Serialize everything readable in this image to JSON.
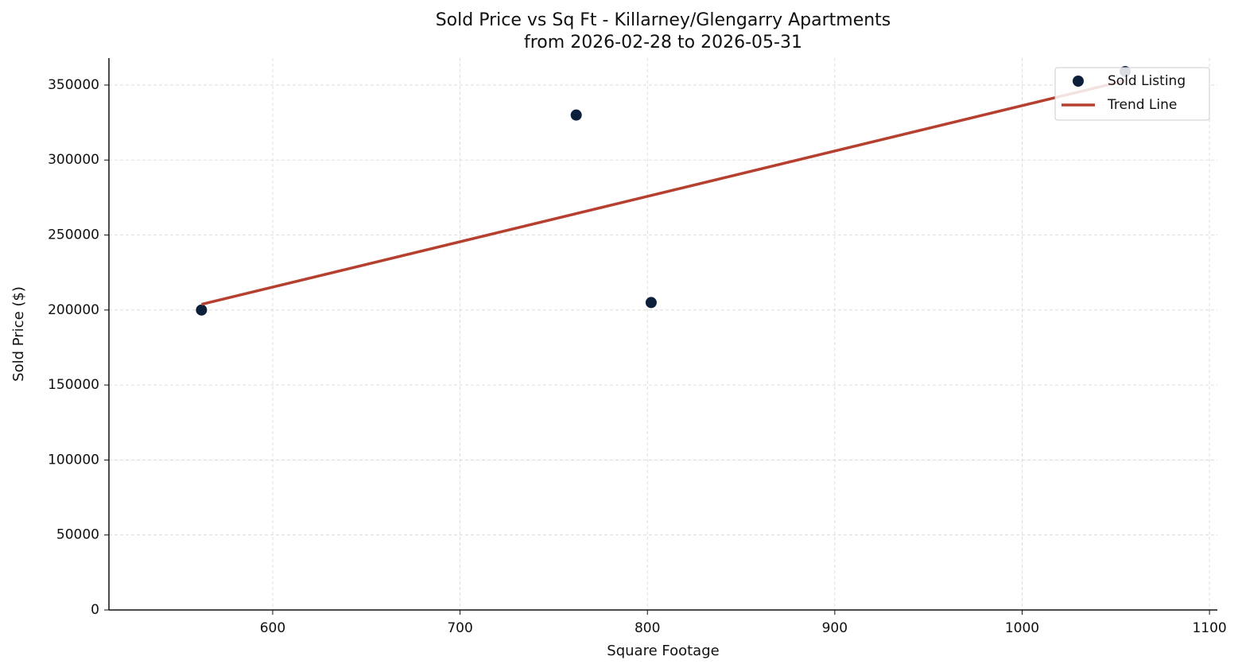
{
  "chart_data": {
    "type": "scatter",
    "title": "Sold Price vs Sq Ft - Killarney/Glengarry Apartments",
    "subtitle": "from 2026-02-28 to 2026-05-31",
    "x_label": "Square Footage",
    "y_label": "Sold Price ($)",
    "series": [
      {
        "name": "Sold Listing",
        "type": "scatter",
        "color": "#0c1f3b",
        "x": [
          562,
          762,
          802,
          1055
        ],
        "values": [
          200000,
          330000,
          205000,
          359000
        ]
      },
      {
        "name": "Trend Line",
        "type": "line",
        "color": "#b5402f",
        "x": [
          562,
          1055
        ],
        "values": [
          203800,
          352900
        ]
      }
    ],
    "xlim": [
      512.6,
      1104.2
    ],
    "xticks": [
      600,
      700,
      800,
      900,
      1000,
      1100
    ],
    "ylim": [
      0,
      368000
    ],
    "yticks": [
      0,
      50000,
      100000,
      150000,
      200000,
      250000,
      300000,
      350000
    ],
    "grid": true,
    "legend": "upper-right"
  }
}
